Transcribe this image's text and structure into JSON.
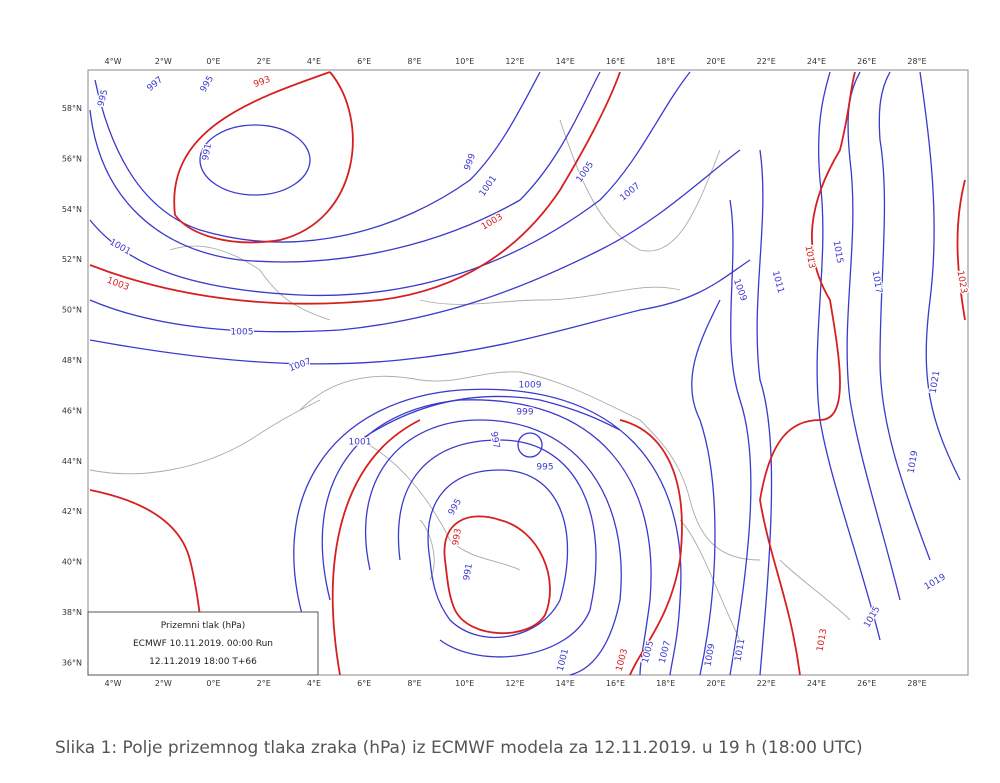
{
  "map": {
    "longitude_labels": [
      "4°W",
      "2°W",
      "0°E",
      "2°E",
      "4°E",
      "6°E",
      "8°E",
      "10°E",
      "12°E",
      "14°E",
      "16°E",
      "18°E",
      "20°E",
      "22°E",
      "24°E",
      "26°E",
      "28°E"
    ],
    "latitude_labels": [
      "58°N",
      "56°N",
      "54°N",
      "52°N",
      "50°N",
      "48°N",
      "46°N",
      "44°N",
      "42°N",
      "40°N",
      "38°N",
      "36°N"
    ],
    "isobar_labels": [
      "995",
      "997",
      "995",
      "993",
      "991",
      "999",
      "1001",
      "1003",
      "1005",
      "1007",
      "1001",
      "1003",
      "1005",
      "1007",
      "1009",
      "999",
      "1001",
      "997",
      "995",
      "995",
      "993",
      "991",
      "1001",
      "1003",
      "1005",
      "1007",
      "1009",
      "1011",
      "1013",
      "1015",
      "1019",
      "1013",
      "1015",
      "1017",
      "1023",
      "1021",
      "1019",
      "1011",
      "1009"
    ],
    "legend": {
      "title": "Prizemni tlak (hPa)",
      "run": "ECMWF 10.11.2019.  00:00 Run",
      "valid": "12.11.2019 18:00  T+66"
    }
  },
  "caption": "Slika 1: Polje prizemnog tlaka zraka (hPa) iz ECMWF modela za 12.11.2019. u 19 h (18:00 UTC)"
}
